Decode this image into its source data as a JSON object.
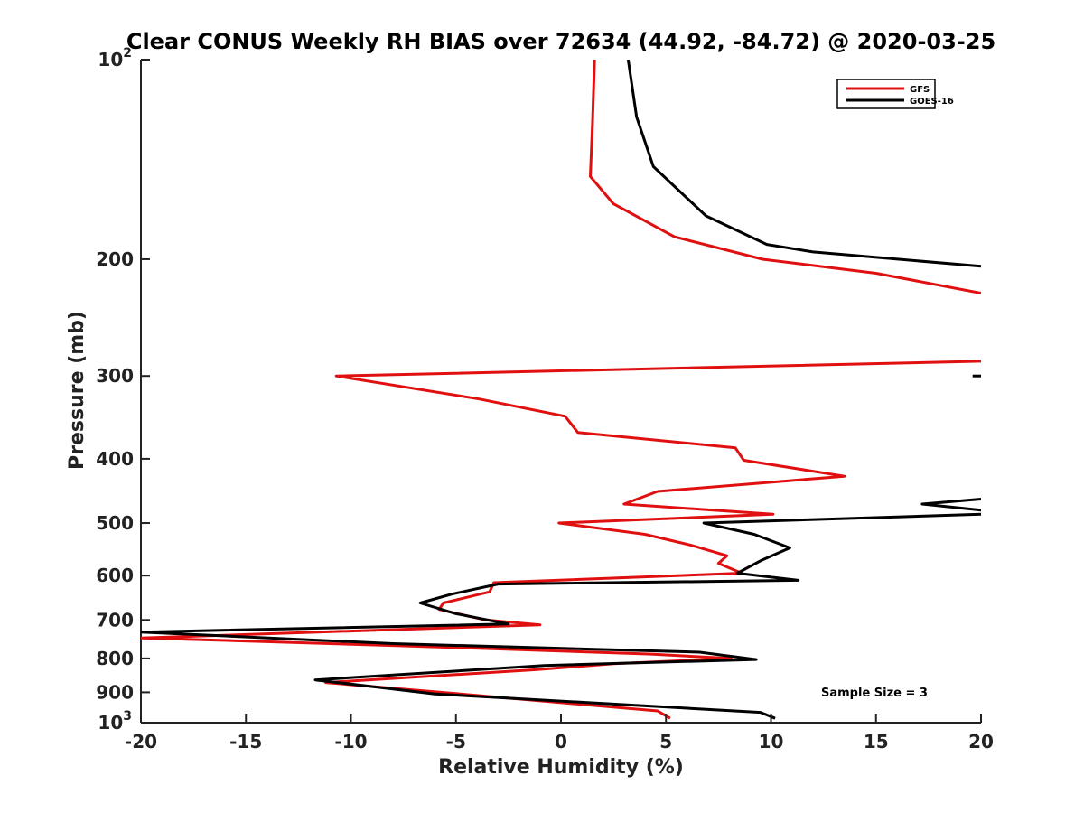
{
  "chart_data": {
    "type": "line",
    "title": "Clear CONUS Weekly RH BIAS over 72634 (44.92, -84.72) @ 2020-03-25",
    "xlabel": "Relative Humidity (%)",
    "ylabel": "Pressure (mb)",
    "xlim": [
      -20,
      20
    ],
    "ylim": [
      100,
      1000
    ],
    "yscale": "log",
    "y_reversed": true,
    "grid": false,
    "legend_position": "top-right",
    "x_ticks": [
      "-20",
      "-15",
      "-10",
      "-5",
      "0",
      "5",
      "10",
      "15",
      "20"
    ],
    "y_ticks": [
      {
        "value": 100,
        "label": "10",
        "sup": "2"
      },
      {
        "value": 200,
        "label": "200",
        "sup": ""
      },
      {
        "value": 300,
        "label": "300",
        "sup": ""
      },
      {
        "value": 400,
        "label": "400",
        "sup": ""
      },
      {
        "value": 500,
        "label": "500",
        "sup": ""
      },
      {
        "value": 600,
        "label": "600",
        "sup": ""
      },
      {
        "value": 700,
        "label": "700",
        "sup": ""
      },
      {
        "value": 800,
        "label": "800",
        "sup": ""
      },
      {
        "value": 900,
        "label": "900",
        "sup": ""
      },
      {
        "value": 1000,
        "label": "10",
        "sup": "3"
      }
    ],
    "annotation": "Sample Size = 3",
    "series": [
      {
        "name": "GFS",
        "color": "#e01010",
        "segments": [
          [
            [
              1.6,
              100
            ],
            [
              1.5,
              125
            ],
            [
              1.4,
              150
            ],
            [
              2.5,
              165
            ],
            [
              5.4,
              185
            ],
            [
              9.6,
              200
            ],
            [
              15,
              210
            ],
            [
              20,
              225
            ]
          ],
          [
            [
              20,
              285
            ],
            [
              -10.7,
              300
            ],
            [
              -3.9,
              325
            ],
            [
              0.2,
              345
            ],
            [
              0.8,
              365
            ],
            [
              8.3,
              385
            ],
            [
              8.7,
              402
            ],
            [
              13.5,
              425
            ],
            [
              4.6,
              448
            ],
            [
              3,
              468
            ],
            [
              10.1,
              485
            ],
            [
              -0.1,
              500
            ],
            [
              4,
              520
            ],
            [
              6.2,
              540
            ],
            [
              7.9,
              560
            ],
            [
              7.5,
              575
            ],
            [
              8.6,
              595
            ],
            [
              -3.2,
              615
            ],
            [
              -3.4,
              635
            ],
            [
              -5.6,
              660
            ],
            [
              -5.8,
              675
            ],
            [
              -3.6,
              700
            ],
            [
              -1,
              712
            ],
            [
              -20,
              745
            ],
            [
              -8,
              765
            ],
            [
              4.3,
              788
            ],
            [
              8.1,
              800
            ],
            [
              2.5,
              815
            ],
            [
              -1.2,
              832
            ],
            [
              -11.2,
              870
            ],
            [
              -4.8,
              905
            ],
            [
              4.6,
              960
            ],
            [
              5.2,
              985
            ]
          ]
        ]
      },
      {
        "name": "GOES-16",
        "color": "#000000",
        "segments": [
          [
            [
              3.2,
              100
            ],
            [
              3.6,
              122
            ],
            [
              4.4,
              145
            ],
            [
              6.9,
              172
            ],
            [
              9.8,
              190
            ],
            [
              12,
              195
            ],
            [
              20,
              205
            ]
          ],
          [
            [
              19.6,
              300
            ],
            [
              20,
              300
            ]
          ],
          [
            [
              20,
              460
            ],
            [
              17.2,
              468
            ],
            [
              20,
              478
            ]
          ],
          [
            [
              20,
              485
            ],
            [
              6.8,
              500
            ],
            [
              9.2,
              520
            ],
            [
              10.9,
              545
            ],
            [
              9.5,
              570
            ],
            [
              8.4,
              595
            ],
            [
              11.3,
              610
            ],
            [
              -3,
              618
            ],
            [
              -5.2,
              640
            ],
            [
              -6.7,
              660
            ],
            [
              -5,
              685
            ],
            [
              -2.5,
              710
            ],
            [
              -20,
              730
            ],
            [
              -8,
              760
            ],
            [
              6.6,
              783
            ],
            [
              9.3,
              803
            ],
            [
              -0.8,
              820
            ],
            [
              -11.7,
              862
            ],
            [
              -6,
              905
            ],
            [
              9.5,
              965
            ],
            [
              10.2,
              985
            ]
          ]
        ]
      }
    ]
  }
}
